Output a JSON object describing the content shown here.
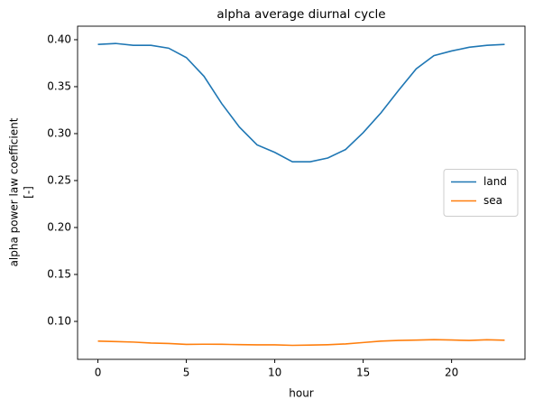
{
  "chart_data": {
    "type": "line",
    "title": "alpha average diurnal cycle",
    "xlabel": "hour",
    "ylabel": [
      "alpha power law coefficient",
      "[-]"
    ],
    "x": [
      0,
      1,
      2,
      3,
      4,
      5,
      6,
      7,
      8,
      9,
      10,
      11,
      12,
      13,
      14,
      15,
      16,
      17,
      18,
      19,
      20,
      21,
      22,
      23
    ],
    "series": [
      {
        "name": "land",
        "color": "#1f77b4",
        "values": [
          0.395,
          0.396,
          0.394,
          0.394,
          0.391,
          0.381,
          0.361,
          0.332,
          0.307,
          0.288,
          0.28,
          0.27,
          0.27,
          0.274,
          0.283,
          0.301,
          0.322,
          0.346,
          0.369,
          0.383,
          0.388,
          0.392,
          0.394,
          0.395
        ]
      },
      {
        "name": "sea",
        "color": "#ff7f0e",
        "values": [
          0.079,
          0.0785,
          0.078,
          0.077,
          0.0765,
          0.0755,
          0.0757,
          0.0756,
          0.0753,
          0.075,
          0.075,
          0.0745,
          0.0748,
          0.0752,
          0.076,
          0.0775,
          0.079,
          0.0797,
          0.0801,
          0.0806,
          0.0802,
          0.0797,
          0.0805,
          0.08
        ]
      }
    ],
    "xlim": [
      -1.15,
      24.15
    ],
    "ylim": [
      0.0596,
      0.4144
    ],
    "xticks": [
      0,
      5,
      10,
      15,
      20
    ],
    "yticks": [
      {
        "value": 0.1,
        "label": "0.10"
      },
      {
        "value": 0.15,
        "label": "0.15"
      },
      {
        "value": 0.2,
        "label": "0.20"
      },
      {
        "value": 0.25,
        "label": "0.25"
      },
      {
        "value": 0.3,
        "label": "0.30"
      },
      {
        "value": 0.35,
        "label": "0.35"
      },
      {
        "value": 0.4,
        "label": "0.40"
      }
    ],
    "legend": "center right"
  }
}
